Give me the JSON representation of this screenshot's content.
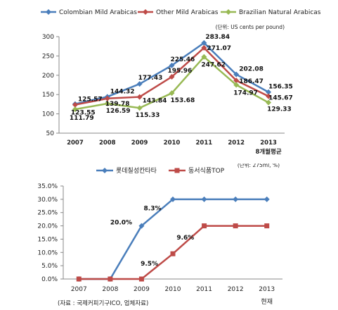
{
  "chart_data": [
    {
      "type": "line",
      "categories": [
        "2007",
        "2008",
        "2009",
        "2010",
        "2011",
        "2012",
        "2013"
      ],
      "category_sublabel": "8개월평균",
      "unit_note": "(단위: US cents per pound)",
      "ylim": [
        50,
        300
      ],
      "yticks": [
        "50",
        "100",
        "150",
        "200",
        "250",
        "300"
      ],
      "legend_position": "top",
      "grid": false,
      "series": [
        {
          "name": "Colombian Mild Arabicas",
          "color": "#4a7ebb",
          "values": [
            125.57,
            144.32,
            177.43,
            225.46,
            283.84,
            202.08,
            156.35
          ],
          "labels": [
            "125.57",
            "144.32",
            "177.43",
            "225.46",
            "283.84",
            "202.08",
            "156.35"
          ]
        },
        {
          "name": "Other Mild Arabicas",
          "color": "#be4b48",
          "values": [
            123.55,
            139.78,
            143.84,
            195.96,
            271.07,
            186.47,
            145.67
          ],
          "labels": [
            "123.55",
            "139.78",
            "143.84",
            "195.96",
            "271.07",
            "186.47",
            "145.67"
          ]
        },
        {
          "name": "Brazilian Natural Arabicas",
          "color": "#98b954",
          "values": [
            111.79,
            126.59,
            115.33,
            153.68,
            247.62,
            174.97,
            129.33
          ],
          "labels": [
            "111.79",
            "126.59",
            "115.33",
            "153.68",
            "247.62",
            "174.97",
            "129.33"
          ]
        }
      ]
    },
    {
      "type": "line",
      "categories": [
        "2007",
        "2008",
        "2009",
        "2010",
        "2011",
        "2012",
        "2013"
      ],
      "category_sublabel": "현재",
      "unit_note": "(단위: 275ml,  %)",
      "ylim": [
        0,
        35
      ],
      "yticks": [
        "0.0%",
        "5.0%",
        "10.0%",
        "15.0%",
        "20.0%",
        "25.0%",
        "30.0%",
        "35.0%"
      ],
      "legend_position": "top",
      "grid": false,
      "annotations": [
        "20.0%",
        "8.3%",
        "9.5%",
        "9.6%"
      ],
      "series": [
        {
          "name": "롯데칠성칸타타",
          "color": "#4a7ebb",
          "marker": "diamond",
          "values": [
            0,
            0,
            20,
            30,
            30,
            30,
            30
          ]
        },
        {
          "name": "동서식품TOP",
          "color": "#be4b48",
          "marker": "square",
          "values": [
            0,
            0,
            0,
            9.5,
            20,
            20,
            20
          ]
        }
      ]
    }
  ],
  "source_note": "(자료 : 국제커피기구ICO, 업체자료)"
}
